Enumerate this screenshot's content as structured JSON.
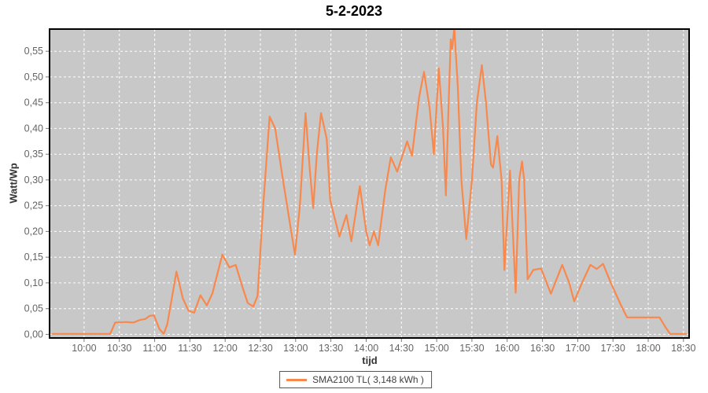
{
  "title": "5-2-2023",
  "legend": {
    "label": "SMA2100 TL( 3,148 kWh )"
  },
  "chart_data": {
    "type": "line",
    "title": "5-2-2023",
    "xlabel": "tijd",
    "ylabel": "Watt/Wp",
    "xlim": [
      9.51,
      18.58
    ],
    "ylim": [
      -0.007,
      0.593
    ],
    "grid": true,
    "grid_style": "white dashed on gray plot background",
    "legend_position": "bottom",
    "colors": {
      "plot_bg": "#c8c8c8",
      "grid": "#ffffff",
      "series": "#f8884c",
      "tick_text": "#646464",
      "axis_text": "#333333",
      "plot_border": "#000000",
      "tick_mark": "#7a7a7a",
      "legend_border": "#555555",
      "title_text": "#000000"
    },
    "x_ticks": [
      {
        "t": 10.0,
        "label": "10:00"
      },
      {
        "t": 10.5,
        "label": "10:30"
      },
      {
        "t": 11.0,
        "label": "11:00"
      },
      {
        "t": 11.5,
        "label": "11:30"
      },
      {
        "t": 12.0,
        "label": "12:00"
      },
      {
        "t": 12.5,
        "label": "12:30"
      },
      {
        "t": 13.0,
        "label": "13:00"
      },
      {
        "t": 13.5,
        "label": "13:30"
      },
      {
        "t": 14.0,
        "label": "14:00"
      },
      {
        "t": 14.5,
        "label": "14:30"
      },
      {
        "t": 15.0,
        "label": "15:00"
      },
      {
        "t": 15.5,
        "label": "15:30"
      },
      {
        "t": 16.0,
        "label": "16:00"
      },
      {
        "t": 16.5,
        "label": "16:30"
      },
      {
        "t": 17.0,
        "label": "17:00"
      },
      {
        "t": 17.5,
        "label": "17:30"
      },
      {
        "t": 18.0,
        "label": "18:00"
      },
      {
        "t": 18.5,
        "label": "18:30"
      }
    ],
    "y_ticks": [
      {
        "v": 0.0,
        "label": "0,00"
      },
      {
        "v": 0.05,
        "label": "0,05"
      },
      {
        "v": 0.1,
        "label": "0,10"
      },
      {
        "v": 0.15,
        "label": "0,15"
      },
      {
        "v": 0.2,
        "label": "0,20"
      },
      {
        "v": 0.25,
        "label": "0,25"
      },
      {
        "v": 0.3,
        "label": "0,30"
      },
      {
        "v": 0.35,
        "label": "0,35"
      },
      {
        "v": 0.4,
        "label": "0,40"
      },
      {
        "v": 0.45,
        "label": "0,45"
      },
      {
        "v": 0.5,
        "label": "0,50"
      },
      {
        "v": 0.55,
        "label": "0,55"
      }
    ],
    "series": [
      {
        "name": "SMA2100 TL( 3,148 kWh )",
        "color": "#f8884c",
        "points": [
          [
            9.55,
            0.001
          ],
          [
            10.37,
            0.001
          ],
          [
            10.44,
            0.023
          ],
          [
            10.59,
            0.024
          ],
          [
            10.7,
            0.023
          ],
          [
            10.79,
            0.028
          ],
          [
            10.87,
            0.03
          ],
          [
            10.93,
            0.036
          ],
          [
            10.99,
            0.037
          ],
          [
            11.07,
            0.01
          ],
          [
            11.13,
            0.001
          ],
          [
            11.18,
            0.02
          ],
          [
            11.31,
            0.122
          ],
          [
            11.4,
            0.07
          ],
          [
            11.48,
            0.046
          ],
          [
            11.56,
            0.042
          ],
          [
            11.65,
            0.076
          ],
          [
            11.74,
            0.056
          ],
          [
            11.82,
            0.08
          ],
          [
            11.96,
            0.155
          ],
          [
            12.06,
            0.13
          ],
          [
            12.15,
            0.135
          ],
          [
            12.25,
            0.09
          ],
          [
            12.32,
            0.061
          ],
          [
            12.4,
            0.054
          ],
          [
            12.46,
            0.075
          ],
          [
            12.54,
            0.25
          ],
          [
            12.63,
            0.423
          ],
          [
            12.71,
            0.4
          ],
          [
            12.82,
            0.3
          ],
          [
            12.99,
            0.155
          ],
          [
            13.06,
            0.25
          ],
          [
            13.14,
            0.43
          ],
          [
            13.2,
            0.32
          ],
          [
            13.25,
            0.245
          ],
          [
            13.3,
            0.35
          ],
          [
            13.36,
            0.43
          ],
          [
            13.44,
            0.38
          ],
          [
            13.49,
            0.26
          ],
          [
            13.62,
            0.19
          ],
          [
            13.72,
            0.232
          ],
          [
            13.79,
            0.181
          ],
          [
            13.91,
            0.288
          ],
          [
            14.0,
            0.2
          ],
          [
            14.05,
            0.173
          ],
          [
            14.11,
            0.2
          ],
          [
            14.17,
            0.173
          ],
          [
            14.27,
            0.28
          ],
          [
            14.35,
            0.344
          ],
          [
            14.44,
            0.316
          ],
          [
            14.58,
            0.375
          ],
          [
            14.65,
            0.347
          ],
          [
            14.75,
            0.46
          ],
          [
            14.82,
            0.51
          ],
          [
            14.9,
            0.44
          ],
          [
            14.96,
            0.35
          ],
          [
            15.03,
            0.517
          ],
          [
            15.09,
            0.4
          ],
          [
            15.13,
            0.27
          ],
          [
            15.17,
            0.45
          ],
          [
            15.2,
            0.573
          ],
          [
            15.22,
            0.555
          ],
          [
            15.25,
            0.595
          ],
          [
            15.3,
            0.48
          ],
          [
            15.35,
            0.3
          ],
          [
            15.42,
            0.185
          ],
          [
            15.5,
            0.3
          ],
          [
            15.57,
            0.45
          ],
          [
            15.64,
            0.523
          ],
          [
            15.7,
            0.45
          ],
          [
            15.77,
            0.33
          ],
          [
            15.8,
            0.324
          ],
          [
            15.86,
            0.385
          ],
          [
            15.92,
            0.3
          ],
          [
            15.96,
            0.125
          ],
          [
            16.04,
            0.318
          ],
          [
            16.12,
            0.081
          ],
          [
            16.17,
            0.3
          ],
          [
            16.21,
            0.336
          ],
          [
            16.24,
            0.3
          ],
          [
            16.29,
            0.107
          ],
          [
            16.37,
            0.125
          ],
          [
            16.48,
            0.128
          ],
          [
            16.62,
            0.079
          ],
          [
            16.78,
            0.135
          ],
          [
            16.88,
            0.1
          ],
          [
            16.95,
            0.064
          ],
          [
            17.06,
            0.1
          ],
          [
            17.18,
            0.135
          ],
          [
            17.27,
            0.127
          ],
          [
            17.36,
            0.137
          ],
          [
            17.47,
            0.1
          ],
          [
            17.62,
            0.055
          ],
          [
            17.7,
            0.033
          ],
          [
            18.16,
            0.033
          ],
          [
            18.24,
            0.015
          ],
          [
            18.31,
            0.001
          ],
          [
            18.54,
            0.001
          ]
        ]
      }
    ]
  }
}
